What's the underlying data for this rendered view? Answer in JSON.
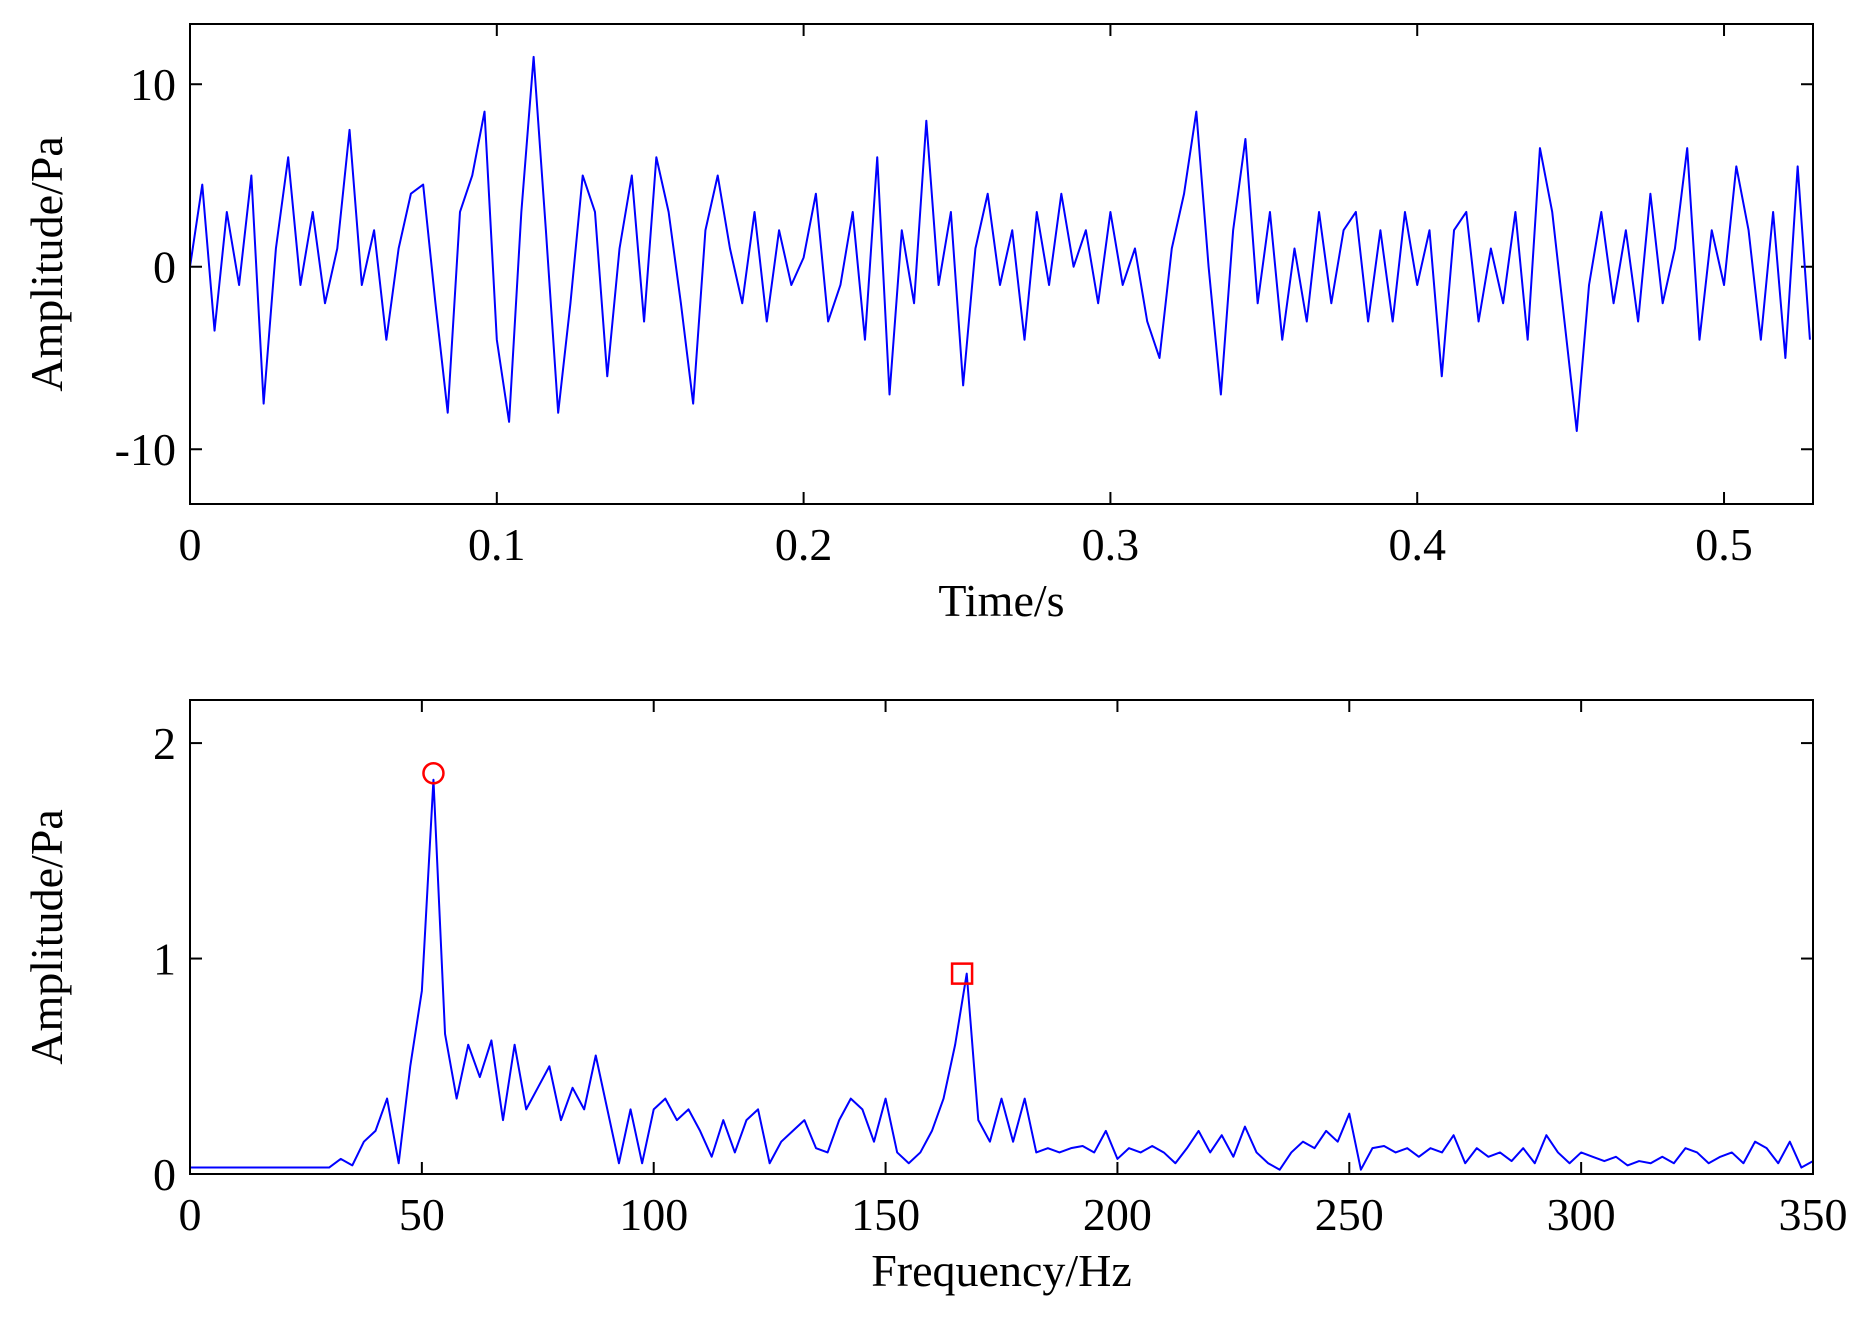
{
  "chart_data": [
    {
      "type": "line",
      "xlabel": "Time/s",
      "ylabel": "Amplitude/Pa",
      "xlim": [
        0,
        0.529
      ],
      "ylim": [
        -13,
        13.3
      ],
      "xticks": [
        0,
        0.1,
        0.2,
        0.3,
        0.4,
        0.5
      ],
      "yticks": [
        -10,
        0,
        10
      ],
      "x": [
        0,
        0.004,
        0.008,
        0.012,
        0.016,
        0.02,
        0.024,
        0.028,
        0.032,
        0.036,
        0.04,
        0.044,
        0.048,
        0.052,
        0.056,
        0.06,
        0.064,
        0.068,
        0.072,
        0.076,
        0.08,
        0.084,
        0.088,
        0.092,
        0.096,
        0.1,
        0.104,
        0.108,
        0.112,
        0.116,
        0.12,
        0.124,
        0.128,
        0.132,
        0.136,
        0.14,
        0.144,
        0.148,
        0.152,
        0.156,
        0.16,
        0.164,
        0.168,
        0.172,
        0.176,
        0.18,
        0.184,
        0.188,
        0.192,
        0.196,
        0.2,
        0.204,
        0.208,
        0.212,
        0.216,
        0.22,
        0.224,
        0.228,
        0.232,
        0.236,
        0.24,
        0.244,
        0.248,
        0.252,
        0.256,
        0.26,
        0.264,
        0.268,
        0.272,
        0.276,
        0.28,
        0.284,
        0.288,
        0.292,
        0.296,
        0.3,
        0.304,
        0.308,
        0.312,
        0.316,
        0.32,
        0.324,
        0.328,
        0.332,
        0.336,
        0.34,
        0.344,
        0.348,
        0.352,
        0.356,
        0.36,
        0.364,
        0.368,
        0.372,
        0.376,
        0.38,
        0.384,
        0.388,
        0.392,
        0.396,
        0.4,
        0.404,
        0.408,
        0.412,
        0.416,
        0.42,
        0.424,
        0.428,
        0.432,
        0.436,
        0.44,
        0.444,
        0.448,
        0.452,
        0.456,
        0.46,
        0.464,
        0.468,
        0.472,
        0.476,
        0.48,
        0.484,
        0.488,
        0.492,
        0.496,
        0.5,
        0.504,
        0.508,
        0.512,
        0.516,
        0.52,
        0.524,
        0.528
      ],
      "series": [
        {
          "color": "#0000ff",
          "values": [
            0,
            4.5,
            -3.5,
            3,
            -1,
            5,
            -7.5,
            1,
            6,
            -1,
            3,
            -2,
            1,
            7.5,
            -1,
            2,
            -4,
            1,
            4,
            4.5,
            -2,
            -8,
            3,
            5,
            8.5,
            -4,
            -8.5,
            3,
            11.5,
            2,
            -8,
            -2,
            5,
            3,
            -6,
            1,
            5,
            -3,
            6,
            3,
            -2,
            -7.5,
            2,
            5,
            1,
            -2,
            3,
            -3,
            2,
            -1,
            0.5,
            4,
            -3,
            -1,
            3,
            -4,
            6,
            -7,
            2,
            -2,
            8,
            -1,
            3,
            -6.5,
            1,
            4,
            -1,
            2,
            -4,
            3,
            -1,
            4,
            0,
            2,
            -2,
            3,
            -1,
            1,
            -3,
            -5,
            1,
            4,
            8.5,
            0,
            -7,
            2,
            7,
            -2,
            3,
            -4,
            1,
            -3,
            3,
            -2,
            2,
            3,
            -3,
            2,
            -3,
            3,
            -1,
            2,
            -6,
            2,
            3,
            -3,
            1,
            -2,
            3,
            -4,
            6.5,
            3,
            -3,
            -9,
            -1,
            3,
            -2,
            2,
            -3,
            4,
            -2,
            1,
            6.5,
            -4,
            2,
            -1,
            5.5,
            2,
            -4,
            3,
            -5,
            5.5,
            -4
          ]
        }
      ]
    },
    {
      "type": "line",
      "xlabel": "Frequency/Hz",
      "ylabel": "Amplitude/Pa",
      "xlim": [
        0,
        350
      ],
      "ylim": [
        0,
        2.2
      ],
      "xticks": [
        0,
        50,
        100,
        150,
        200,
        250,
        300,
        350
      ],
      "yticks": [
        0,
        1,
        2
      ],
      "x": [
        0,
        2.5,
        5,
        7.5,
        10,
        12.5,
        15,
        17.5,
        20,
        22.5,
        25,
        27.5,
        30,
        32.5,
        35,
        37.5,
        40,
        42.5,
        45,
        47.5,
        50,
        52.5,
        55,
        57.5,
        60,
        62.5,
        65,
        67.5,
        70,
        72.5,
        75,
        77.5,
        80,
        82.5,
        85,
        87.5,
        90,
        92.5,
        95,
        97.5,
        100,
        102.5,
        105,
        107.5,
        110,
        112.5,
        115,
        117.5,
        120,
        122.5,
        125,
        127.5,
        130,
        132.5,
        135,
        137.5,
        140,
        142.5,
        145,
        147.5,
        150,
        152.5,
        155,
        157.5,
        160,
        162.5,
        165,
        167.5,
        170,
        172.5,
        175,
        177.5,
        180,
        182.5,
        185,
        187.5,
        190,
        192.5,
        195,
        197.5,
        200,
        202.5,
        205,
        207.5,
        210,
        212.5,
        215,
        217.5,
        220,
        222.5,
        225,
        227.5,
        230,
        232.5,
        235,
        237.5,
        240,
        242.5,
        245,
        247.5,
        250,
        252.5,
        255,
        257.5,
        260,
        262.5,
        265,
        267.5,
        270,
        272.5,
        275,
        277.5,
        280,
        282.5,
        285,
        287.5,
        290,
        292.5,
        295,
        297.5,
        300,
        302.5,
        305,
        307.5,
        310,
        312.5,
        315,
        317.5,
        320,
        322.5,
        325,
        327.5,
        330,
        332.5,
        335,
        337.5,
        340,
        342.5,
        345,
        347.5,
        350
      ],
      "series": [
        {
          "color": "#0000ff",
          "values": [
            0.03,
            0.03,
            0.03,
            0.03,
            0.03,
            0.03,
            0.03,
            0.03,
            0.03,
            0.03,
            0.03,
            0.03,
            0.03,
            0.07,
            0.04,
            0.15,
            0.2,
            0.35,
            0.05,
            0.5,
            0.85,
            1.83,
            0.65,
            0.35,
            0.6,
            0.45,
            0.62,
            0.25,
            0.6,
            0.3,
            0.4,
            0.5,
            0.25,
            0.4,
            0.3,
            0.55,
            0.3,
            0.05,
            0.3,
            0.05,
            0.3,
            0.35,
            0.25,
            0.3,
            0.2,
            0.08,
            0.25,
            0.1,
            0.25,
            0.3,
            0.05,
            0.15,
            0.2,
            0.25,
            0.12,
            0.1,
            0.25,
            0.35,
            0.3,
            0.15,
            0.35,
            0.1,
            0.05,
            0.1,
            0.2,
            0.35,
            0.6,
            0.93,
            0.25,
            0.15,
            0.35,
            0.15,
            0.35,
            0.1,
            0.12,
            0.1,
            0.12,
            0.13,
            0.1,
            0.2,
            0.07,
            0.12,
            0.1,
            0.13,
            0.1,
            0.05,
            0.12,
            0.2,
            0.1,
            0.18,
            0.08,
            0.22,
            0.1,
            0.05,
            0.02,
            0.1,
            0.15,
            0.12,
            0.2,
            0.15,
            0.28,
            0.02,
            0.12,
            0.13,
            0.1,
            0.12,
            0.08,
            0.12,
            0.1,
            0.18,
            0.05,
            0.12,
            0.08,
            0.1,
            0.06,
            0.12,
            0.05,
            0.18,
            0.1,
            0.05,
            0.1,
            0.08,
            0.06,
            0.08,
            0.04,
            0.06,
            0.05,
            0.08,
            0.05,
            0.12,
            0.1,
            0.05,
            0.08,
            0.1,
            0.05,
            0.15,
            0.12,
            0.05,
            0.15,
            0.03,
            0.06
          ]
        }
      ],
      "markers": [
        {
          "x": 52.5,
          "y": 1.86,
          "shape": "circle",
          "color": "#ff0000"
        },
        {
          "x": 166.5,
          "y": 0.93,
          "shape": "square",
          "color": "#ff0000"
        }
      ]
    }
  ]
}
